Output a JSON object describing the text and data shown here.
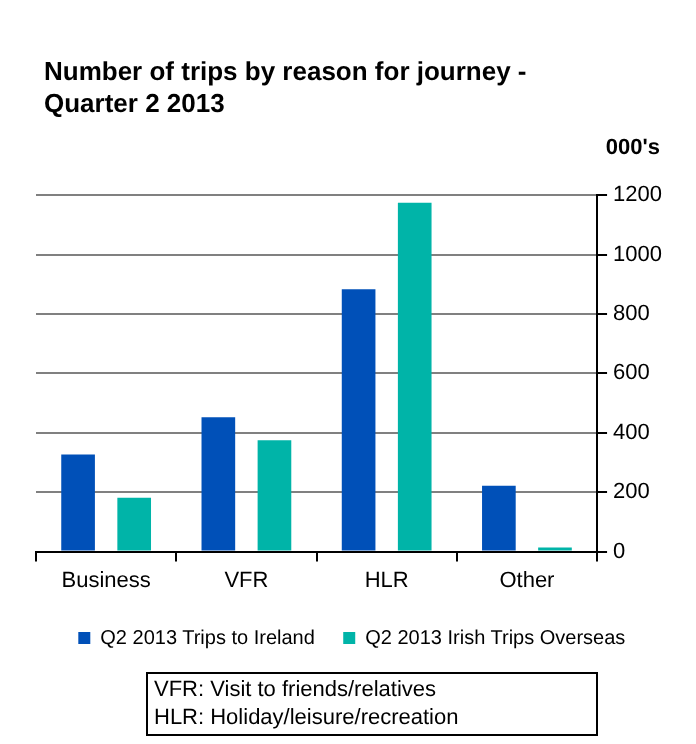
{
  "chart_data": {
    "type": "bar",
    "title": "Number of trips by reason for journey - Quarter 2 2013",
    "ylabel": "000's",
    "categories": [
      "Business",
      "VFR",
      "HLR",
      "Other"
    ],
    "series": [
      {
        "name": "Q2 2013 Trips to Ireland",
        "color": "#0050b8",
        "values": [
          327,
          452,
          883,
          222
        ]
      },
      {
        "name": "Q2 2013 Irish Trips Overseas",
        "color": "#00b4a8",
        "values": [
          181,
          375,
          1175,
          14
        ]
      }
    ],
    "ylim": [
      0,
      1200
    ],
    "yticks": [
      0,
      200,
      400,
      600,
      800,
      1000,
      1200
    ],
    "grid": "y",
    "legend": "bottom",
    "annotations": [
      "VFR: Visit to friends/relatives",
      "HLR: Holiday/leisure/recreation"
    ]
  }
}
